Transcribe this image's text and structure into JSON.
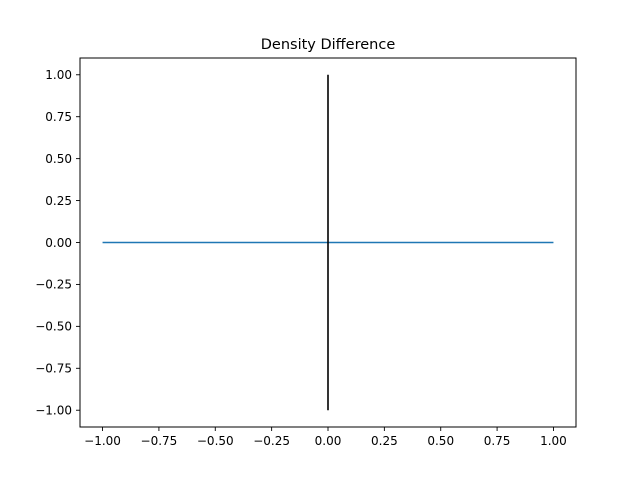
{
  "chart_data": {
    "type": "line",
    "title": "Density Difference",
    "xlabel": "",
    "ylabel": "",
    "xlim": [
      -1.1,
      1.1
    ],
    "ylim": [
      -1.1,
      1.1
    ],
    "x_ticks": [
      "−1.00",
      "−0.75",
      "−0.50",
      "−0.25",
      "0.00",
      "0.25",
      "0.50",
      "0.75",
      "1.00"
    ],
    "y_ticks": [
      "−1.00",
      "−0.75",
      "−0.50",
      "−0.25",
      "0.00",
      "0.25",
      "0.50",
      "0.75",
      "1.00"
    ],
    "grid": false,
    "series": [
      {
        "x": [
          -1.0,
          1.0
        ],
        "y": [
          0.0,
          0.0
        ],
        "color": "#1f77b4"
      },
      {
        "x": [
          0.0,
          0.0
        ],
        "y": [
          -1.0,
          1.0
        ],
        "color": "#000000"
      }
    ]
  }
}
